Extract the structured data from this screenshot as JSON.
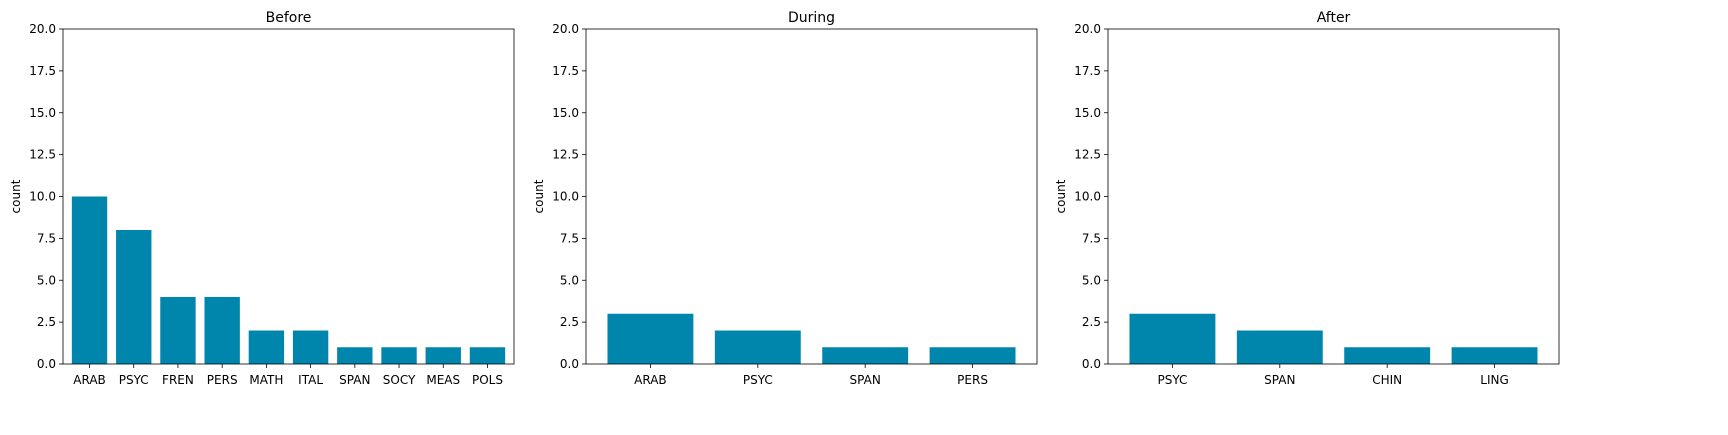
{
  "chart_data": [
    {
      "type": "bar",
      "title": "Before",
      "xlabel": "",
      "ylabel": "count",
      "ylim": [
        0,
        20
      ],
      "yticks": [
        "0.0",
        "2.5",
        "5.0",
        "7.5",
        "10.0",
        "12.5",
        "15.0",
        "17.5",
        "20.0"
      ],
      "categories": [
        "ARAB",
        "PSYC",
        "FREN",
        "PERS",
        "MATH",
        "ITAL",
        "SPAN",
        "SOCY",
        "MEAS",
        "POLS"
      ],
      "values": [
        10,
        8,
        4,
        4,
        2,
        2,
        1,
        1,
        1,
        1
      ],
      "color": "#0086ad",
      "grid": false
    },
    {
      "type": "bar",
      "title": "During",
      "xlabel": "",
      "ylabel": "count",
      "ylim": [
        0,
        20
      ],
      "yticks": [
        "0.0",
        "2.5",
        "5.0",
        "7.5",
        "10.0",
        "12.5",
        "15.0",
        "17.5",
        "20.0"
      ],
      "categories": [
        "ARAB",
        "PSYC",
        "SPAN",
        "PERS"
      ],
      "values": [
        3,
        2,
        1,
        1
      ],
      "color": "#0086ad",
      "grid": false
    },
    {
      "type": "bar",
      "title": "After",
      "xlabel": "",
      "ylabel": "count",
      "ylim": [
        0,
        20
      ],
      "yticks": [
        "0.0",
        "2.5",
        "5.0",
        "7.5",
        "10.0",
        "12.5",
        "15.0",
        "17.5",
        "20.0"
      ],
      "categories": [
        "PSYC",
        "SPAN",
        "CHIN",
        "LING"
      ],
      "values": [
        3,
        2,
        1,
        1
      ],
      "color": "#0086ad",
      "grid": false
    }
  ]
}
